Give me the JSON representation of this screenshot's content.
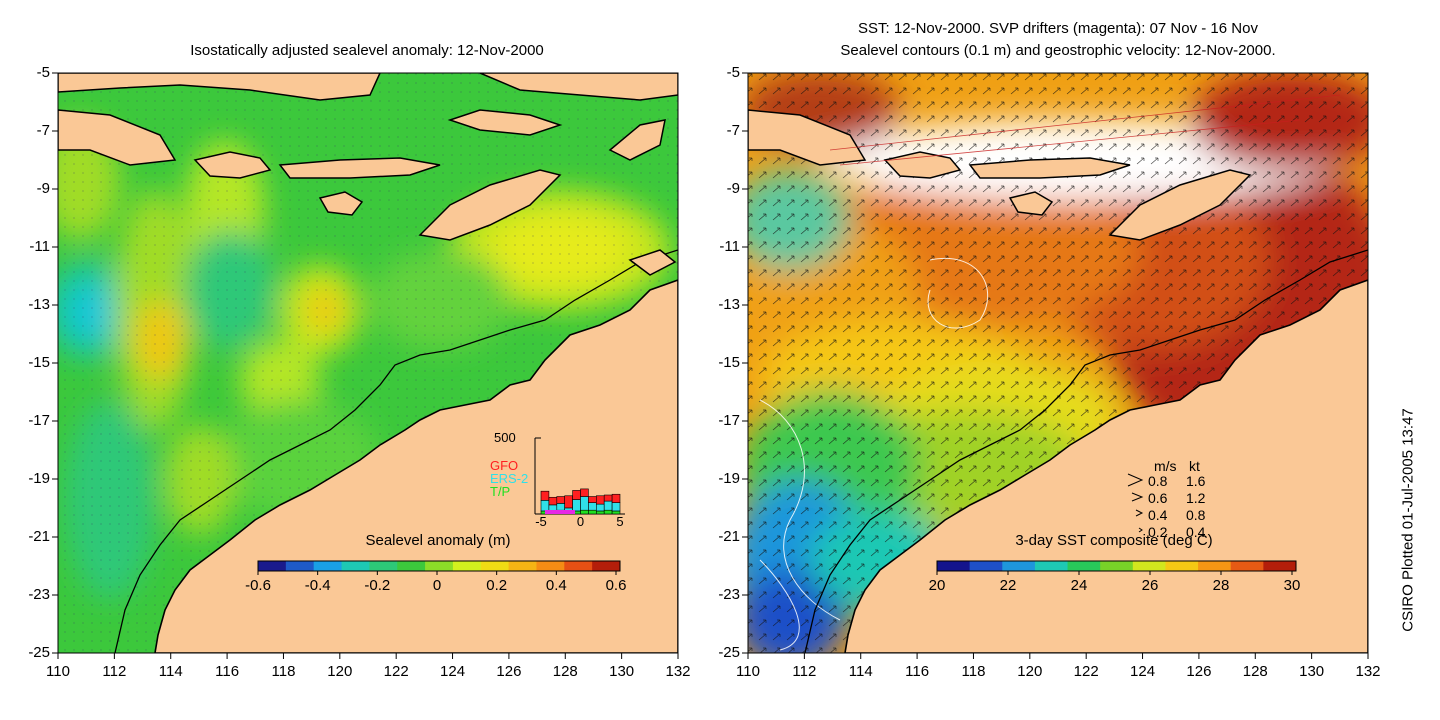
{
  "left_panel": {
    "title": "Isostatically adjusted sealevel anomaly: 12-Nov-2000",
    "colorbar": {
      "label": "Sealevel anomaly (m)",
      "ticks": [
        "-0.6",
        "-0.4",
        "-0.2",
        "0",
        "0.2",
        "0.4",
        "0.6"
      ],
      "colors": [
        "#1a1a8c",
        "#1e5ac8",
        "#19a0e6",
        "#1ec8b4",
        "#2dc878",
        "#3cc83c",
        "#8cdc28",
        "#d2f01e",
        "#f0dc14",
        "#f5b414",
        "#f58c14",
        "#e65014",
        "#b41e0a"
      ]
    },
    "inset": {
      "ymax_label": "500",
      "legend": [
        {
          "label": "GFO",
          "color": "#ff2020"
        },
        {
          "label": "ERS-2",
          "color": "#30e0e8"
        },
        {
          "label": "T/P",
          "color": "#20e020"
        }
      ],
      "x_ticks": [
        "-5",
        "0",
        "5"
      ],
      "bars": [
        {
          "day": -5,
          "tp": 20,
          "ers": 70,
          "gfo": 60
        },
        {
          "day": -4,
          "tp": 20,
          "ers": 40,
          "gfo": 50
        },
        {
          "day": -3,
          "tp": 25,
          "ers": 45,
          "gfo": 45
        },
        {
          "day": -2,
          "tp": 20,
          "ers": 20,
          "gfo": 80
        },
        {
          "day": -1,
          "tp": 20,
          "ers": 75,
          "gfo": 60
        },
        {
          "day": 0,
          "tp": 25,
          "ers": 90,
          "gfo": 50
        },
        {
          "day": 1,
          "tp": 25,
          "ers": 50,
          "gfo": 40
        },
        {
          "day": 2,
          "tp": 20,
          "ers": 45,
          "gfo": 55
        },
        {
          "day": 3,
          "tp": 25,
          "ers": 60,
          "gfo": 40
        },
        {
          "day": 4,
          "tp": 20,
          "ers": 55,
          "gfo": 55
        }
      ]
    }
  },
  "right_panel": {
    "title_line1": "SST: 12-Nov-2000. SVP drifters (magenta): 07 Nov - 16 Nov",
    "title_line2": "Sealevel contours (0.1 m) and geostrophic velocity: 12-Nov-2000.",
    "colorbar": {
      "label": "3-day SST composite (deg C)",
      "ticks": [
        "20",
        "22",
        "24",
        "26",
        "28",
        "30"
      ],
      "colors": [
        "#14148c",
        "#1e50c8",
        "#1e96dc",
        "#1ec8b4",
        "#28c85a",
        "#78d228",
        "#d2e61e",
        "#f5c814",
        "#f59614",
        "#e65a14",
        "#b41e0a"
      ]
    },
    "velocity_legend": {
      "header_ms": "m/s",
      "header_kt": "kt",
      "rows": [
        {
          "ms": "0.8",
          "kt": "1.6"
        },
        {
          "ms": "0.6",
          "kt": "1.2"
        },
        {
          "ms": "0.4",
          "kt": "0.8"
        },
        {
          "ms": "0.2",
          "kt": "0.4"
        }
      ]
    }
  },
  "axes": {
    "lat_ticks": [
      "-5",
      "-7",
      "-9",
      "-11",
      "-13",
      "-15",
      "-17",
      "-19",
      "-21",
      "-23",
      "-25"
    ],
    "lon_ticks": [
      "110",
      "112",
      "114",
      "116",
      "118",
      "120",
      "122",
      "124",
      "126",
      "128",
      "130",
      "132"
    ],
    "lon_range": [
      110,
      132
    ],
    "lat_range": [
      -25,
      -5
    ]
  },
  "colors": {
    "land": "#fac896",
    "sea_base_left": "#3cc83c",
    "coast": "#000000"
  },
  "credit": "CSIRO Plotted 01-Jul-2005 13:47"
}
